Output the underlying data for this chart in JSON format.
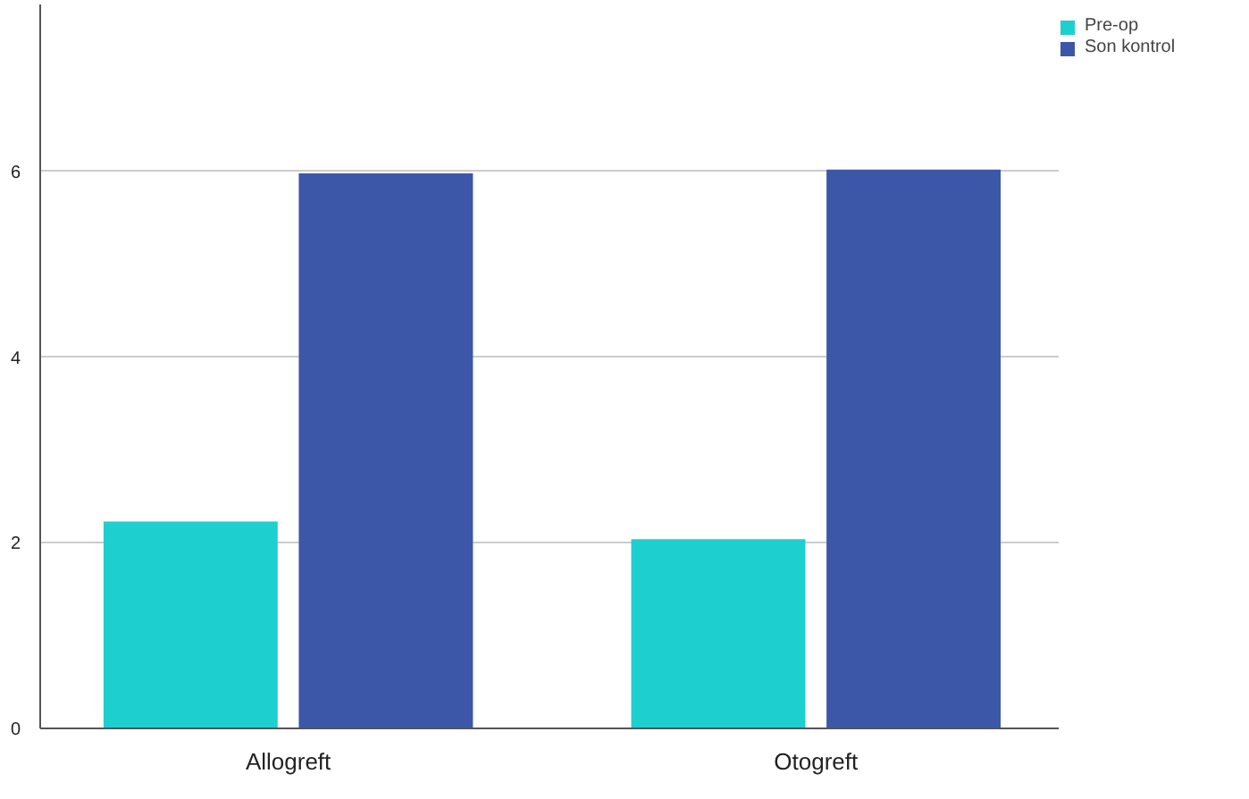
{
  "chart_data": {
    "type": "bar",
    "categories": [
      "Allogreft",
      "Otogreft"
    ],
    "series": [
      {
        "name": "Pre-op",
        "color": "#1ecfcf",
        "values": [
          2.23,
          2.04
        ]
      },
      {
        "name": "Son kontrol",
        "color": "#3d57a8",
        "values": [
          5.98,
          6.02
        ]
      }
    ],
    "ylim": [
      0,
      7.8
    ],
    "yticks": [
      0,
      2,
      4,
      6
    ],
    "grid": "y",
    "legend": "top right"
  }
}
